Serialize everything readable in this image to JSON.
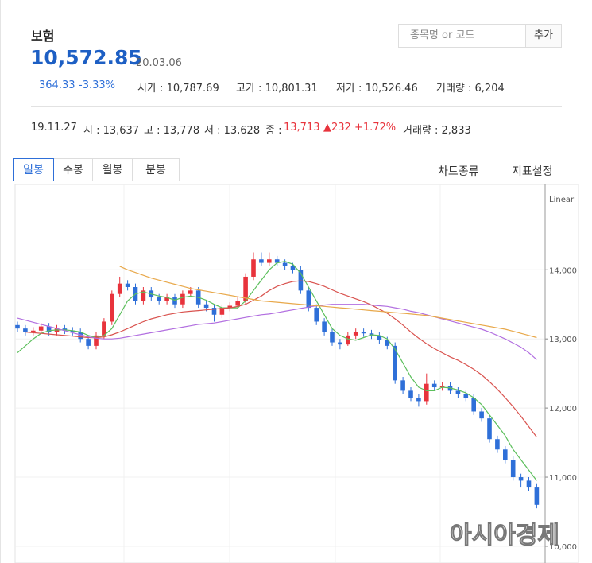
{
  "header": {
    "title": "보험",
    "price": "10,572.85",
    "date": "20.03.06",
    "change": "364.33",
    "change_pct": "-3.33%",
    "open": "시가 : 10,787.69",
    "high": "고가 : 10,801.31",
    "low": "저가 : 10,526.46",
    "volume": "거래량 : 6,204",
    "search_placeholder": "종목명 or 코드",
    "add_button": "추가"
  },
  "info_row": {
    "date": "19.11.27",
    "open": "시 : 13,637",
    "high": "고 : 13,778",
    "low": "저 : 13,628",
    "close_label": "종 :",
    "close": "13,713",
    "change": "▲232 +1.72%",
    "volume": "거래량 : 2,833"
  },
  "tabs": [
    "일봉",
    "주봉",
    "월봉",
    "분봉"
  ],
  "toolbar": [
    "차트종류",
    "지표설정"
  ],
  "watermark": "아시아경제",
  "chart_data": {
    "type": "candlestick",
    "scale_label": "Linear",
    "ylim": [
      9850,
      15050
    ],
    "yticks": [
      {
        "value": 10000,
        "label": "10,000"
      },
      {
        "value": 11000,
        "label": "11,000"
      },
      {
        "value": 12000,
        "label": "12,000"
      },
      {
        "value": 13000,
        "label": "13,000"
      },
      {
        "value": 14000,
        "label": "14,000"
      }
    ],
    "grid": true,
    "up_color": "#e8333c",
    "down_color": "#2e6fd8",
    "open": [
      13200,
      13150,
      13100,
      13120,
      13180,
      13100,
      13150,
      13120,
      13100,
      13000,
      12900,
      13050,
      13250,
      13650,
      13800,
      13750,
      13550,
      13700,
      13600,
      13550,
      13600,
      13500,
      13650,
      13700,
      13500,
      13450,
      13350,
      13450,
      13480,
      13550,
      13900,
      14150,
      14100,
      14150,
      14100,
      14050,
      14000,
      13700,
      13450,
      13250,
      13100,
      12950,
      12920,
      13050,
      13100,
      13080,
      13050,
      12980,
      12900,
      12400,
      12250,
      12150,
      12100,
      12350,
      12300,
      12320,
      12250,
      12200,
      12150,
      11950,
      11850,
      11550,
      11400,
      11250,
      11000,
      10950,
      10850
    ],
    "high": [
      13250,
      13200,
      13170,
      13230,
      13230,
      13200,
      13200,
      13170,
      13150,
      13050,
      13100,
      13300,
      13700,
      13900,
      13850,
      13800,
      13750,
      13750,
      13650,
      13650,
      13650,
      13700,
      13750,
      13750,
      13550,
      13500,
      13500,
      13530,
      13600,
      13950,
      14250,
      14250,
      14250,
      14200,
      14150,
      14100,
      14050,
      13750,
      13500,
      13300,
      13150,
      13000,
      13100,
      13150,
      13150,
      13130,
      13100,
      13030,
      12950,
      12450,
      12300,
      12200,
      12500,
      12400,
      12380,
      12370,
      12300,
      12250,
      12200,
      12000,
      11900,
      11600,
      11450,
      11300,
      11050,
      11000,
      10900
    ],
    "low": [
      13100,
      13050,
      13050,
      13080,
      13050,
      13050,
      13070,
      13050,
      12950,
      12850,
      12850,
      13000,
      13200,
      13600,
      13700,
      13500,
      13500,
      13550,
      13500,
      13500,
      13450,
      13450,
      13600,
      13450,
      13400,
      13250,
      13300,
      13400,
      13430,
      13500,
      13850,
      14050,
      14050,
      14050,
      14000,
      13950,
      13650,
      13400,
      13200,
      13050,
      12900,
      12850,
      12900,
      13000,
      13030,
      13000,
      12930,
      12850,
      12350,
      12200,
      12100,
      12020,
      12050,
      12250,
      12250,
      12200,
      12150,
      12100,
      11900,
      11800,
      11500,
      11350,
      11200,
      10950,
      10850,
      10800,
      10550
    ],
    "close": [
      13150,
      13100,
      13120,
      13180,
      13100,
      13150,
      13120,
      13100,
      13000,
      12900,
      13050,
      13250,
      13650,
      13800,
      13750,
      13550,
      13700,
      13600,
      13550,
      13600,
      13500,
      13650,
      13700,
      13500,
      13450,
      13350,
      13450,
      13480,
      13550,
      13900,
      14150,
      14100,
      14150,
      14100,
      14050,
      14000,
      13700,
      13450,
      13250,
      13100,
      12950,
      12920,
      13050,
      13100,
      13080,
      13050,
      12980,
      12900,
      12400,
      12250,
      12150,
      12100,
      12350,
      12300,
      12320,
      12250,
      12200,
      12150,
      11950,
      11850,
      11550,
      11400,
      11250,
      11000,
      10950,
      10850,
      10600
    ],
    "series": [
      {
        "color": "#5cbf5c",
        "values": [
          12800,
          12900,
          13000,
          13080,
          13120,
          13130,
          13130,
          13120,
          13100,
          13050,
          13020,
          13050,
          13150,
          13350,
          13550,
          13650,
          13680,
          13650,
          13620,
          13600,
          13560,
          13600,
          13620,
          13600,
          13560,
          13500,
          13450,
          13450,
          13450,
          13550,
          13700,
          13850,
          14000,
          14100,
          14120,
          14080,
          13950,
          13750,
          13550,
          13350,
          13150,
          13050,
          13000,
          12980,
          13020,
          13060,
          13050,
          13000,
          12850,
          12650,
          12450,
          12300,
          12250,
          12250,
          12300,
          12290,
          12260,
          12220,
          12150,
          12050,
          11900,
          11750,
          11600,
          11400,
          11250,
          11100,
          10950
        ]
      },
      {
        "color": "#d9534f",
        "values": [
          null,
          13100,
          13090,
          13080,
          13070,
          13060,
          13050,
          13040,
          13030,
          13020,
          13020,
          13030,
          13060,
          13100,
          13150,
          13200,
          13250,
          13290,
          13320,
          13350,
          13370,
          13390,
          13400,
          13410,
          13420,
          13430,
          13440,
          13450,
          13470,
          13500,
          13560,
          13620,
          13700,
          13760,
          13800,
          13830,
          13840,
          13830,
          13800,
          13760,
          13710,
          13660,
          13620,
          13580,
          13540,
          13490,
          13430,
          13370,
          13290,
          13200,
          13100,
          13010,
          12930,
          12860,
          12800,
          12740,
          12690,
          12630,
          12560,
          12480,
          12380,
          12270,
          12150,
          12020,
          11880,
          11730,
          11580
        ]
      },
      {
        "color": "#b26fe0",
        "values": [
          13300,
          13270,
          13240,
          13210,
          13180,
          13150,
          13120,
          13090,
          13060,
          13030,
          13010,
          13000,
          13000,
          13010,
          13030,
          13050,
          13070,
          13090,
          13110,
          13130,
          13150,
          13170,
          13190,
          13210,
          13220,
          13230,
          13250,
          13270,
          13290,
          13310,
          13330,
          13350,
          13360,
          13380,
          13400,
          13420,
          13440,
          13460,
          13480,
          13490,
          13500,
          13500,
          13500,
          13500,
          13500,
          13490,
          13480,
          13470,
          13450,
          13430,
          13400,
          13380,
          13350,
          13320,
          13290,
          13260,
          13230,
          13200,
          13170,
          13140,
          13100,
          13050,
          13000,
          12940,
          12880,
          12800,
          12700
        ]
      },
      {
        "color": "#e8a84a",
        "values": [
          null,
          null,
          null,
          null,
          null,
          null,
          null,
          null,
          null,
          null,
          null,
          null,
          null,
          14050,
          14000,
          13960,
          13920,
          13880,
          13850,
          13820,
          13790,
          13760,
          13730,
          13710,
          13690,
          13670,
          13650,
          13630,
          13610,
          13590,
          13570,
          13550,
          13540,
          13530,
          13520,
          13510,
          13500,
          13490,
          13480,
          13470,
          13460,
          13450,
          13440,
          13430,
          13420,
          13410,
          13400,
          13390,
          13380,
          13370,
          13360,
          13350,
          13340,
          13320,
          13300,
          13280,
          13260,
          13240,
          13220,
          13200,
          13180,
          13160,
          13140,
          13110,
          13080,
          13050,
          13020
        ]
      }
    ]
  }
}
